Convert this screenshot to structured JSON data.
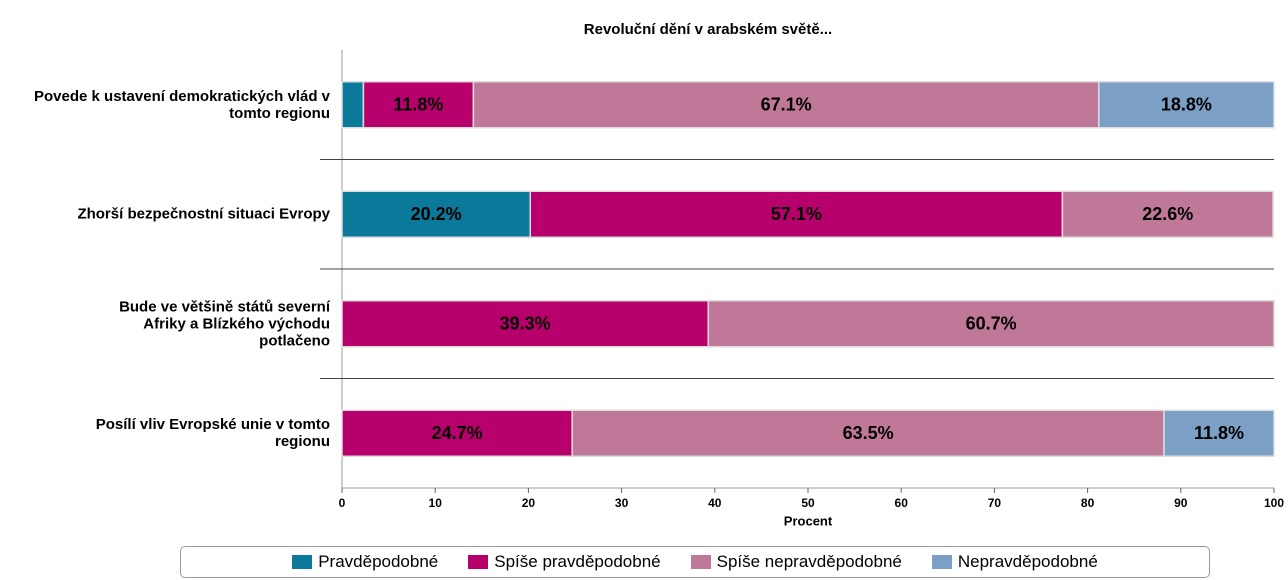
{
  "chart_data": {
    "type": "stacked-barh",
    "title": "Revoluční dění v arabském světě...",
    "xlabel": "Procent",
    "categories": [
      "Povede k ustavení demokratických vlád v tomto regionu",
      "Zhorší bezpečnostní situaci Evropy",
      "Bude ve většině států severní Afriky a Blízkého východu potlačeno",
      "Posílí vliv Evropské unie v tomto regionu"
    ],
    "series": [
      {
        "name": "Pravděpodobné",
        "color": "#0b7a9a",
        "values": [
          2.3,
          20.2,
          null,
          null
        ],
        "value_labels": [
          null,
          "20.2%",
          null,
          null
        ]
      },
      {
        "name": "Spíše pravděpodobné",
        "color": "#b8006c",
        "values": [
          11.8,
          57.1,
          39.3,
          24.7
        ],
        "value_labels": [
          "11.8%",
          "57.1%",
          "39.3%",
          "24.7%"
        ]
      },
      {
        "name": "Spíše nepravděpodobné",
        "color": "#c07898",
        "values": [
          67.1,
          22.6,
          60.7,
          63.5
        ],
        "value_labels": [
          "67.1%",
          "22.6%",
          "60.7%",
          "63.5%"
        ]
      },
      {
        "name": "Nepravděpodobné",
        "color": "#7c9fc6",
        "values": [
          18.8,
          null,
          null,
          11.8
        ],
        "value_labels": [
          "18.8%",
          null,
          null,
          "11.8%"
        ]
      }
    ],
    "xlim": [
      0,
      100
    ],
    "xticks": [
      0,
      10,
      20,
      30,
      40,
      50,
      60,
      70,
      80,
      90,
      100
    ]
  }
}
